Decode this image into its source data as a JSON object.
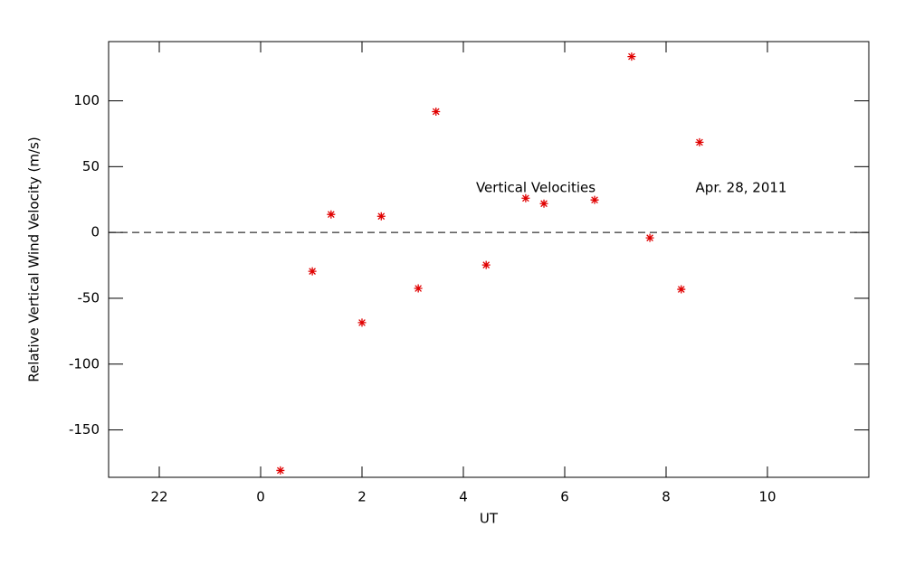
{
  "chart_data": {
    "type": "scatter",
    "xlabel": "UT",
    "ylabel": "Relative Vertical Wind Velocity (m/s)",
    "annotations": [
      "Vertical Velocities",
      "Apr. 28, 2011"
    ],
    "series": [
      {
        "name": "Vertical Velocities",
        "color": "#e00000",
        "x": [
          0.39,
          1.02,
          1.39,
          2.0,
          2.38,
          3.11,
          3.46,
          4.45,
          5.23,
          5.59,
          6.59,
          7.32,
          7.68,
          8.3,
          8.66
        ],
        "values": [
          -180.8,
          -29.5,
          13.7,
          -68.5,
          12.3,
          -42.5,
          91.8,
          -24.7,
          26.0,
          21.9,
          24.7,
          133.6,
          -4.1,
          -43.2,
          68.5
        ]
      }
    ],
    "xlim": [
      -3,
      12
    ],
    "xticks": [
      {
        "value": -2,
        "label": "22"
      },
      0,
      2,
      4,
      6,
      8,
      10
    ],
    "ylim": [
      -186,
      145
    ],
    "yticks": [
      -150,
      -100,
      -50,
      0,
      50,
      100
    ],
    "reference_line": 0
  }
}
